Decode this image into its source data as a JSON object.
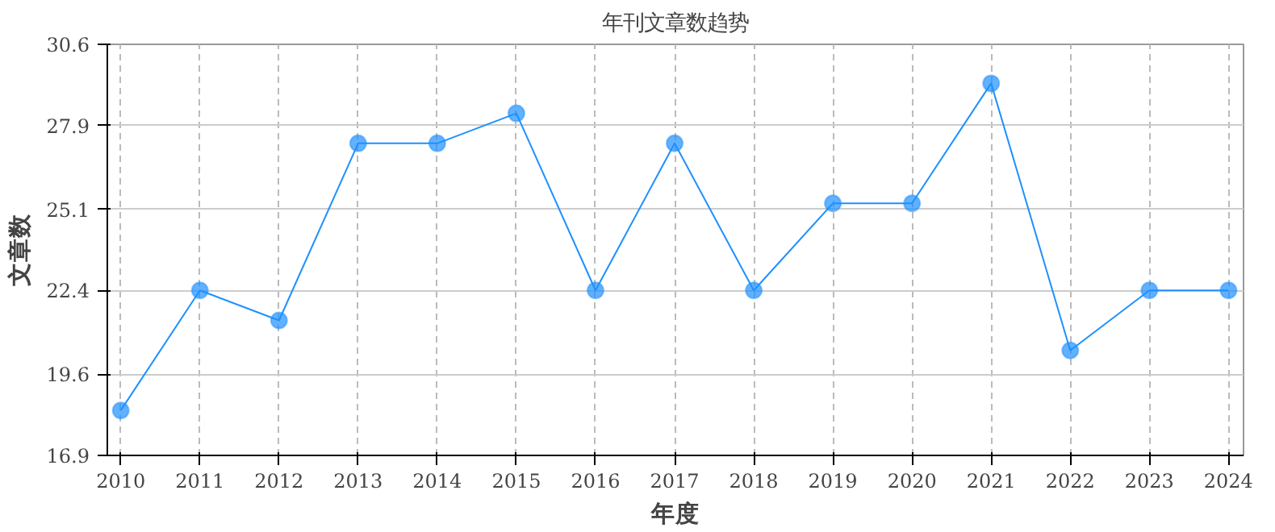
{
  "chart_data": {
    "type": "line",
    "title": "年刊文章数趋势",
    "xlabel": "年度",
    "ylabel": "文章数",
    "categories": [
      "2010",
      "2011",
      "2012",
      "2013",
      "2014",
      "2015",
      "2016",
      "2017",
      "2018",
      "2019",
      "2020",
      "2021",
      "2022",
      "2023",
      "2024"
    ],
    "series": [
      {
        "color": "#1e90ff",
        "values": [
          18.4,
          22.4,
          21.4,
          27.3,
          27.3,
          28.3,
          22.4,
          27.3,
          22.4,
          25.3,
          25.3,
          29.3,
          20.4,
          22.4,
          22.4
        ]
      }
    ],
    "ylim": [
      16.9,
      30.6
    ],
    "yticks": [
      16.9,
      19.6,
      22.4,
      25.1,
      27.9,
      30.6
    ],
    "grid": true,
    "marker": "circle",
    "line_style": "solid"
  }
}
